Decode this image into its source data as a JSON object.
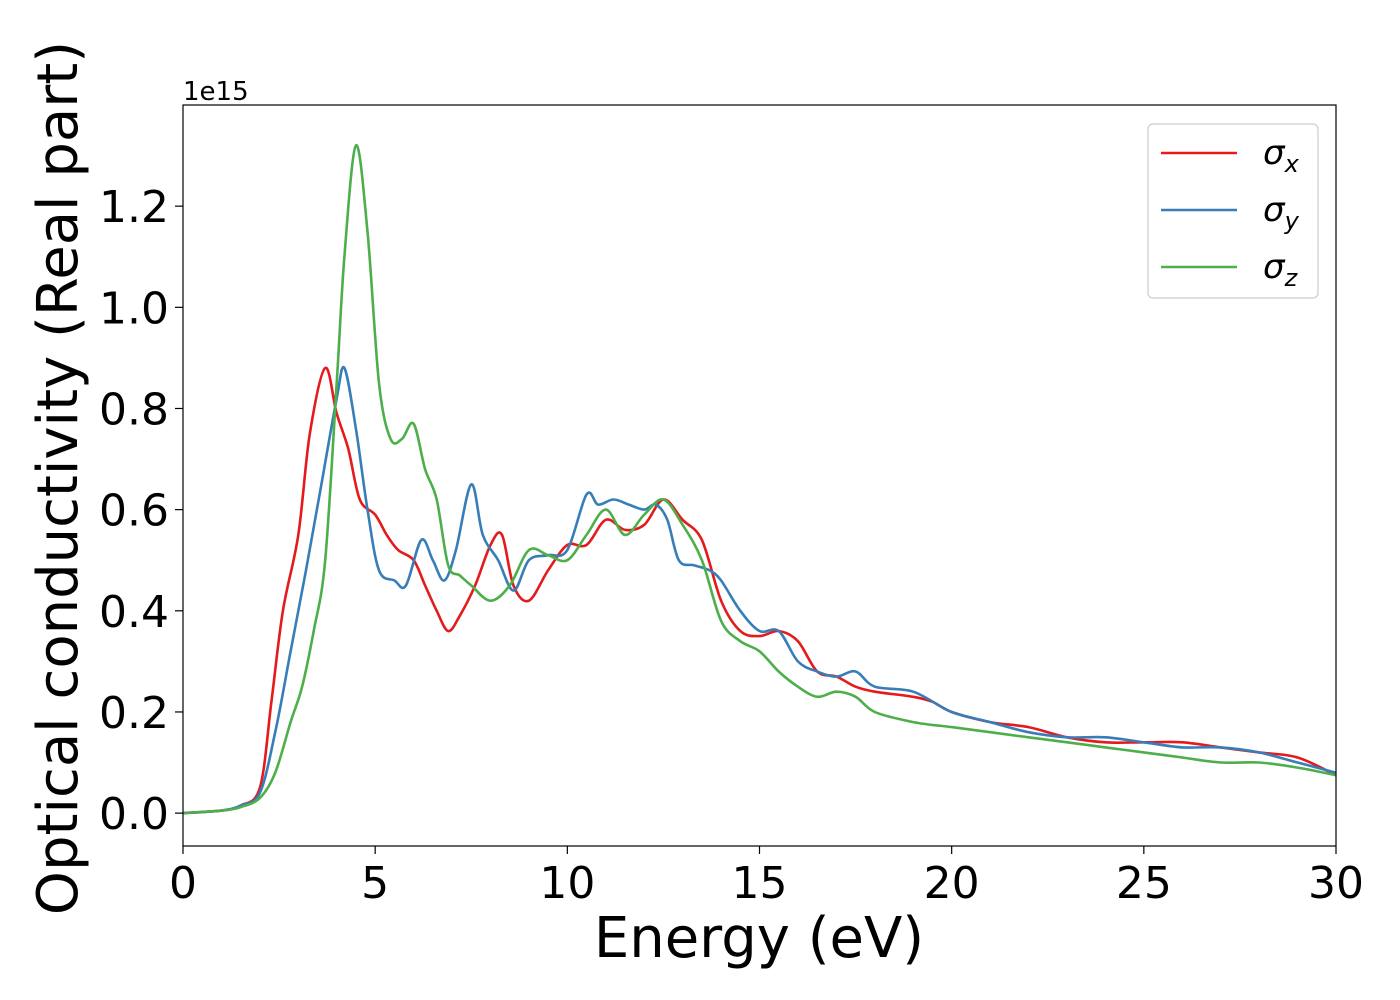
{
  "chart_data": {
    "type": "line",
    "xlabel": "Energy (eV)",
    "ylabel": "Optical conductivity (Real part)",
    "y_offset_text": "1e15",
    "xlim": [
      0,
      30
    ],
    "ylim": [
      -0.065,
      1.4
    ],
    "x_ticks": [
      0,
      5,
      10,
      15,
      20,
      25,
      30
    ],
    "x_tick_labels": [
      "0",
      "5",
      "10",
      "15",
      "20",
      "25",
      "30"
    ],
    "y_ticks": [
      0.0,
      0.2,
      0.4,
      0.6,
      0.8,
      1.0,
      1.2
    ],
    "y_tick_labels": [
      "0.0",
      "0.2",
      "0.4",
      "0.6",
      "0.8",
      "1.0",
      "1.2"
    ],
    "grid": false,
    "legend_position": "top-right",
    "series": [
      {
        "name": "σx",
        "color": "#e41a1c",
        "x": [
          0,
          1,
          1.5,
          2,
          2.3,
          2.6,
          3.0,
          3.3,
          3.7,
          4.0,
          4.3,
          4.6,
          5.0,
          5.3,
          5.6,
          6.0,
          6.3,
          6.6,
          6.9,
          7.2,
          7.6,
          8.0,
          8.3,
          8.6,
          9.0,
          9.5,
          10.0,
          10.5,
          11.0,
          11.5,
          12.0,
          12.5,
          13.0,
          13.5,
          14.0,
          14.5,
          15.0,
          15.5,
          16.0,
          16.5,
          17.0,
          17.5,
          18.0,
          19.0,
          19.5,
          20.0,
          21.0,
          22.0,
          23.0,
          24.0,
          25.0,
          26.0,
          27.0,
          28.0,
          29.0,
          30.0
        ],
        "y": [
          0.0,
          0.005,
          0.015,
          0.05,
          0.22,
          0.4,
          0.55,
          0.75,
          0.88,
          0.79,
          0.72,
          0.62,
          0.59,
          0.55,
          0.52,
          0.5,
          0.45,
          0.4,
          0.36,
          0.39,
          0.45,
          0.53,
          0.55,
          0.45,
          0.42,
          0.48,
          0.53,
          0.53,
          0.58,
          0.56,
          0.57,
          0.62,
          0.58,
          0.54,
          0.42,
          0.36,
          0.35,
          0.36,
          0.34,
          0.28,
          0.27,
          0.25,
          0.24,
          0.23,
          0.22,
          0.2,
          0.18,
          0.17,
          0.15,
          0.14,
          0.14,
          0.14,
          0.13,
          0.12,
          0.11,
          0.075
        ]
      },
      {
        "name": "σy",
        "color": "#377eb8",
        "x": [
          0,
          1,
          1.5,
          2,
          2.4,
          2.8,
          3.2,
          3.6,
          4.0,
          4.2,
          4.5,
          4.8,
          5.1,
          5.5,
          5.8,
          6.2,
          6.5,
          6.8,
          7.1,
          7.5,
          7.8,
          8.2,
          8.6,
          9.0,
          9.5,
          10.0,
          10.5,
          10.8,
          11.2,
          11.6,
          12.0,
          12.3,
          12.6,
          12.9,
          13.3,
          13.7,
          14.0,
          14.5,
          15.0,
          15.5,
          16.0,
          16.5,
          17.0,
          17.5,
          18.0,
          19.0,
          20.0,
          21.0,
          22.0,
          23.0,
          24.0,
          25.0,
          26.0,
          27.0,
          28.0,
          29.0,
          30.0
        ],
        "y": [
          0.0,
          0.005,
          0.015,
          0.04,
          0.16,
          0.32,
          0.48,
          0.65,
          0.82,
          0.88,
          0.76,
          0.6,
          0.48,
          0.46,
          0.45,
          0.54,
          0.5,
          0.46,
          0.52,
          0.65,
          0.55,
          0.5,
          0.44,
          0.5,
          0.51,
          0.52,
          0.63,
          0.61,
          0.62,
          0.61,
          0.6,
          0.61,
          0.58,
          0.5,
          0.49,
          0.48,
          0.46,
          0.4,
          0.36,
          0.36,
          0.3,
          0.28,
          0.27,
          0.28,
          0.25,
          0.24,
          0.2,
          0.18,
          0.16,
          0.15,
          0.15,
          0.14,
          0.13,
          0.13,
          0.12,
          0.1,
          0.08
        ]
      },
      {
        "name": "σz",
        "color": "#4daf4a",
        "x": [
          0,
          1,
          1.5,
          2,
          2.4,
          2.8,
          3.1,
          3.4,
          3.7,
          4.0,
          4.2,
          4.5,
          4.8,
          5.1,
          5.4,
          5.7,
          6.0,
          6.3,
          6.6,
          6.9,
          7.2,
          7.5,
          8.0,
          8.5,
          9.0,
          9.5,
          10.0,
          10.5,
          11.0,
          11.5,
          12.0,
          12.5,
          13.0,
          13.5,
          14.0,
          14.5,
          15.0,
          15.5,
          16.0,
          16.5,
          17.0,
          17.5,
          18.0,
          19.0,
          20.0,
          21.0,
          22.0,
          23.0,
          24.0,
          25.0,
          26.0,
          27.0,
          28.0,
          29.0,
          30.0
        ],
        "y": [
          0.0,
          0.005,
          0.012,
          0.03,
          0.08,
          0.18,
          0.25,
          0.36,
          0.5,
          0.85,
          1.1,
          1.32,
          1.15,
          0.85,
          0.74,
          0.74,
          0.77,
          0.68,
          0.62,
          0.49,
          0.47,
          0.45,
          0.42,
          0.45,
          0.52,
          0.51,
          0.5,
          0.55,
          0.6,
          0.55,
          0.59,
          0.62,
          0.57,
          0.5,
          0.38,
          0.34,
          0.32,
          0.28,
          0.25,
          0.23,
          0.24,
          0.23,
          0.2,
          0.18,
          0.17,
          0.16,
          0.15,
          0.14,
          0.13,
          0.12,
          0.11,
          0.1,
          0.1,
          0.09,
          0.075
        ]
      }
    ]
  }
}
